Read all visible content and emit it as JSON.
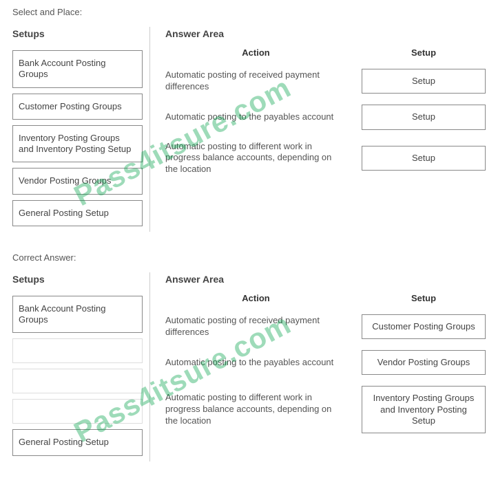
{
  "labels": {
    "select_and_place": "Select and Place:",
    "correct_answer": "Correct Answer:",
    "setups_heading": "Setups",
    "answer_area_heading": "Answer Area",
    "action_col": "Action",
    "setup_col": "Setup"
  },
  "watermark": "Pass4itsure.com",
  "question": {
    "setups": [
      "Bank Account Posting Groups",
      "Customer Posting Groups",
      "Inventory Posting Groups and Inventory Posting Setup",
      "Vendor Posting Groups",
      "General Posting Setup"
    ],
    "rows": [
      {
        "action": "Automatic posting of received payment differences",
        "setup": "Setup"
      },
      {
        "action": "Automatic posting to the payables account",
        "setup": "Setup"
      },
      {
        "action": "Automatic posting to different work in progress balance accounts, depending on the location",
        "setup": "Setup"
      }
    ]
  },
  "answer": {
    "setups": [
      "Bank Account Posting Groups",
      "",
      "",
      "",
      "General Posting Setup"
    ],
    "rows": [
      {
        "action": "Automatic posting of received payment differences",
        "setup": "Customer Posting Groups"
      },
      {
        "action": "Automatic posting to the payables account",
        "setup": "Vendor Posting Groups"
      },
      {
        "action": "Automatic posting to different work in progress balance accounts, depending on the location",
        "setup": "Inventory Posting Groups and Inventory Posting Setup"
      }
    ]
  },
  "style": {
    "box_border": "#888888",
    "text_color": "#555555",
    "watermark_color": "rgba(0,160,70,0.38)"
  }
}
